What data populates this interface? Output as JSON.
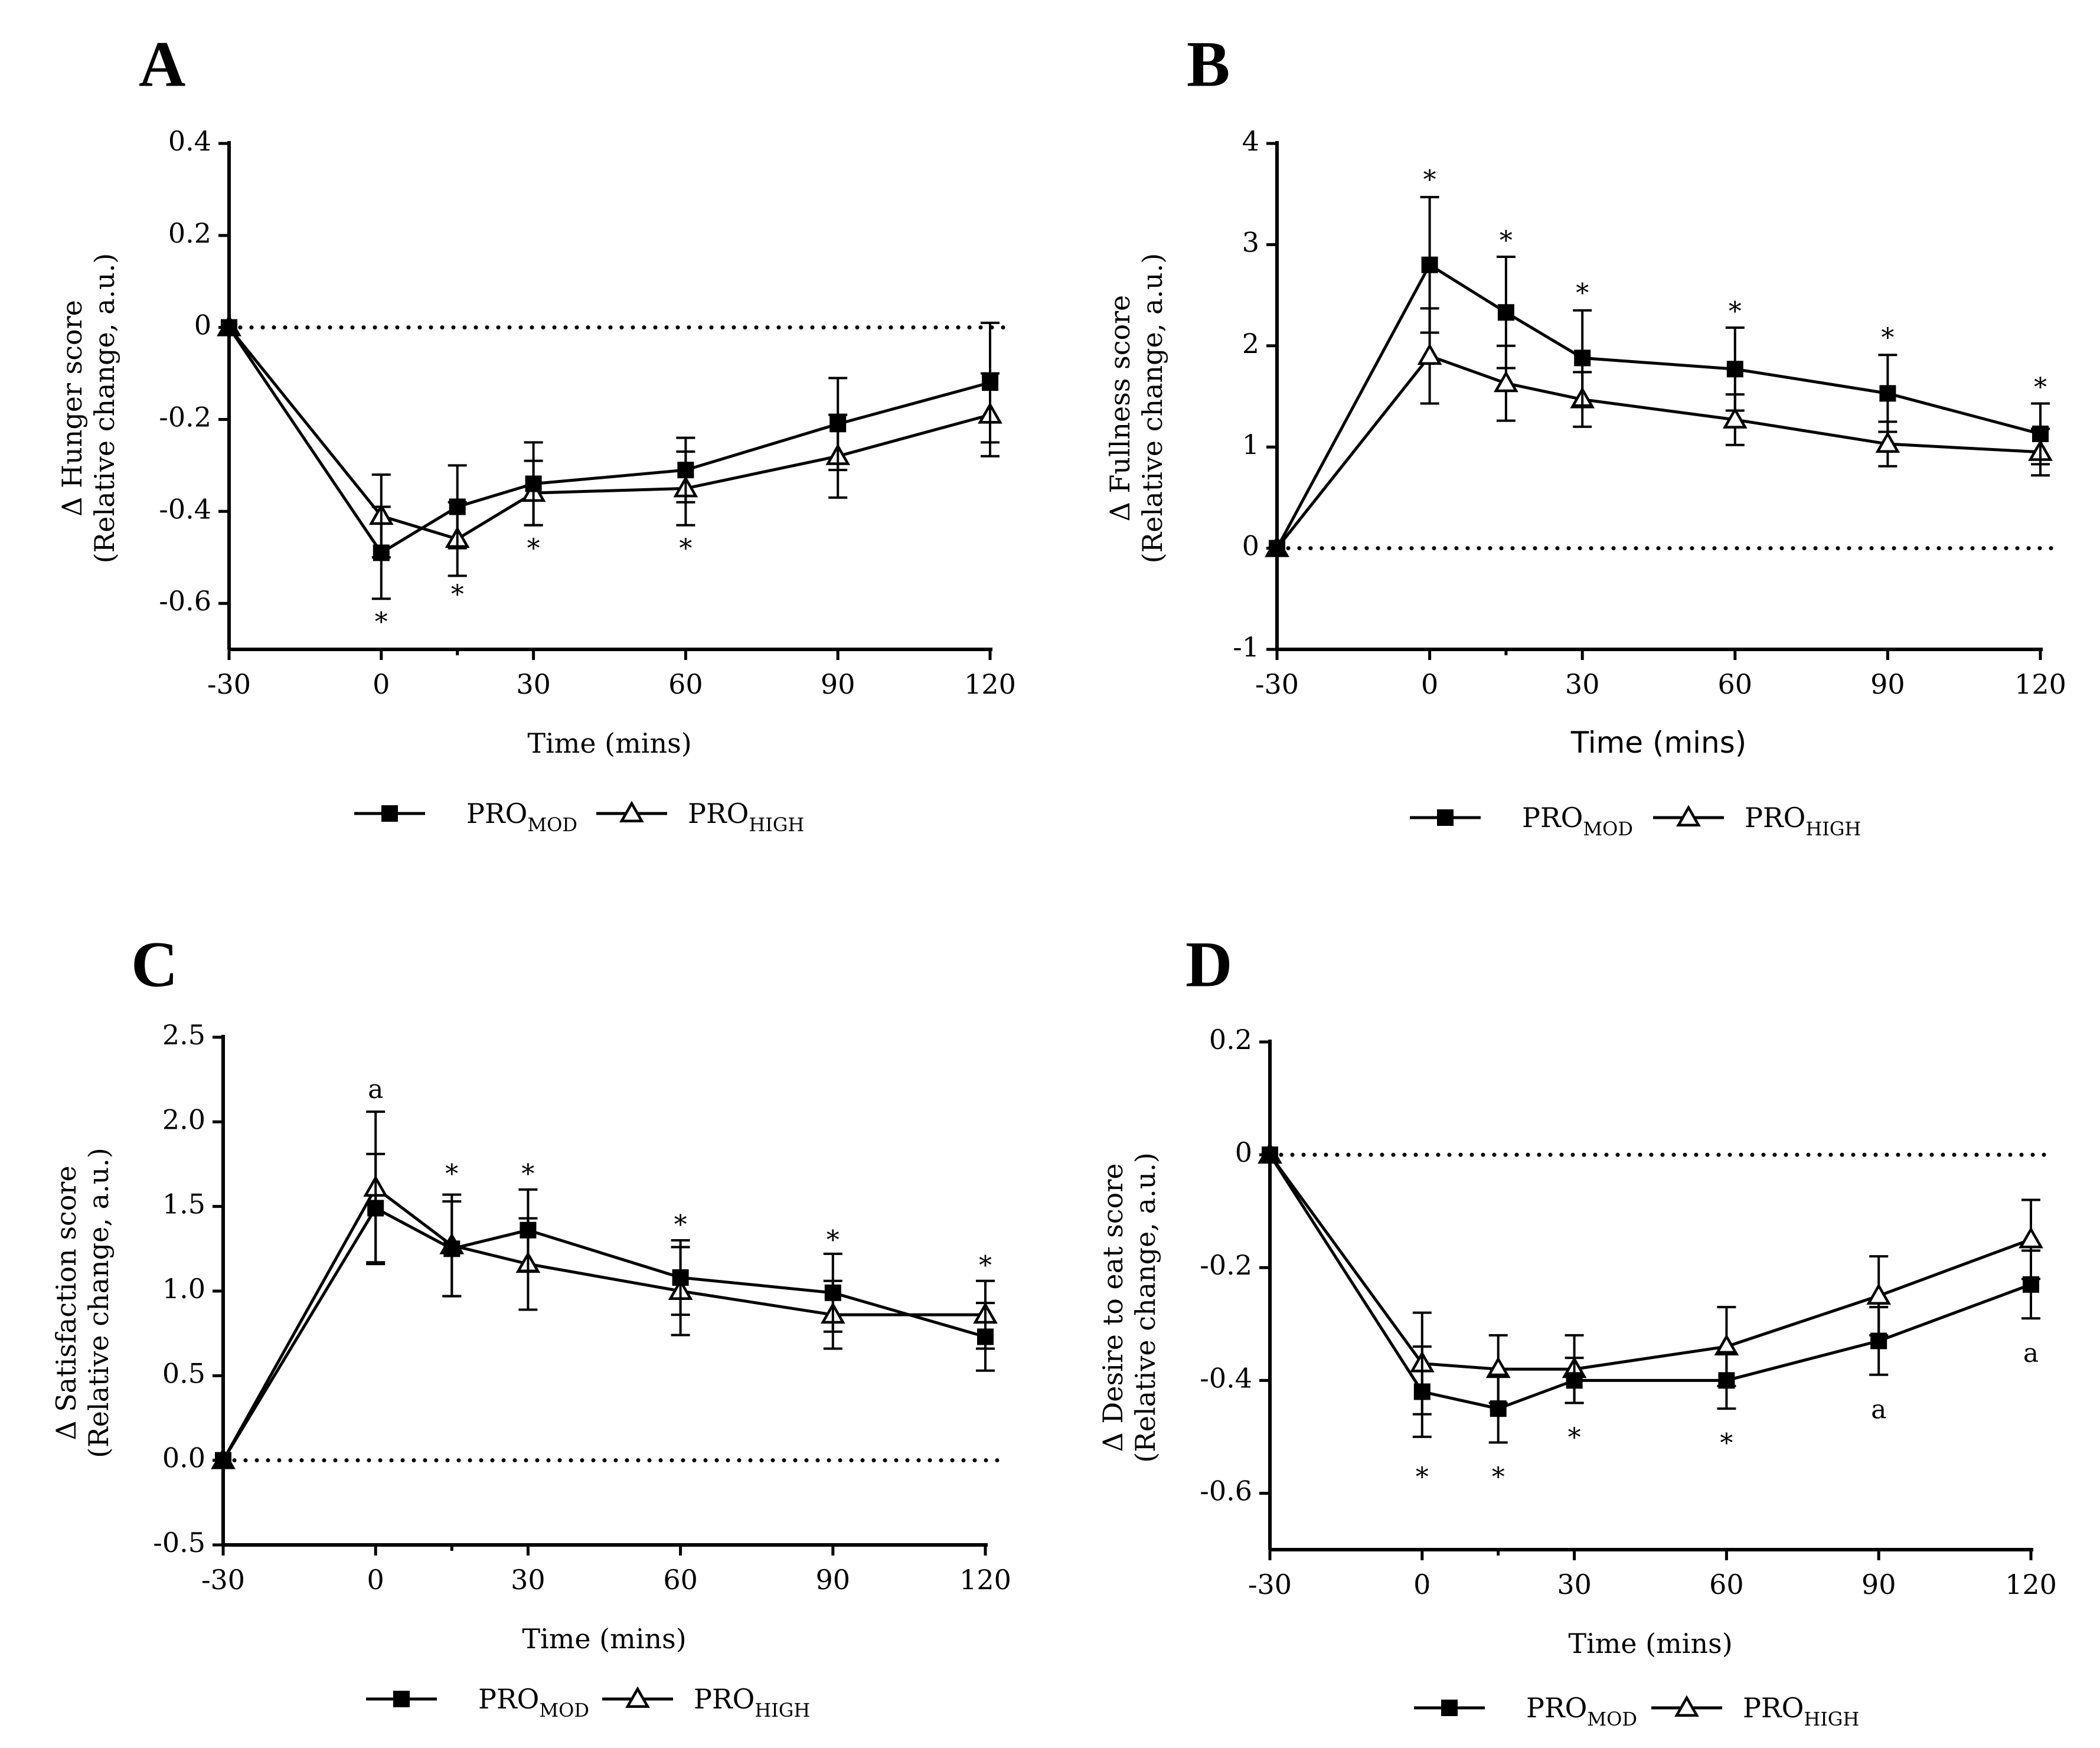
{
  "legend": {
    "series_mod_base": "PRO",
    "series_mod_sub": "MOD",
    "series_high_base": "PRO",
    "series_high_sub": "HIGH"
  },
  "chart_data": [
    {
      "panel": "A",
      "type": "line",
      "xlabel": "Time (mins)",
      "ylabel_main": "Δ Hunger score",
      "ylabel_sub": "(Relative change, a.u.)",
      "x": [
        -30,
        0,
        15,
        30,
        60,
        90,
        120
      ],
      "xticks": [
        -30,
        0,
        30,
        60,
        90,
        120
      ],
      "xtick_labels": [
        "-30",
        "0",
        "30",
        "60",
        "90",
        "120"
      ],
      "yticks": [
        -0.6,
        -0.4,
        -0.2,
        0,
        0.2,
        0.4
      ],
      "ytick_labels": [
        "-0.6",
        "-0.4",
        "-0.2",
        "0",
        "0.2",
        "0.4"
      ],
      "ylim": [
        -0.7,
        0.4
      ],
      "series": [
        {
          "name": "PRO_MOD",
          "marker": "square-filled",
          "values": [
            0,
            -0.49,
            -0.39,
            -0.34,
            -0.31,
            -0.21,
            -0.12
          ],
          "err": [
            0,
            0.1,
            0.09,
            0.09,
            0.07,
            0.1,
            0.13
          ]
        },
        {
          "name": "PRO_HIGH",
          "marker": "triangle-open",
          "values": [
            0,
            -0.41,
            -0.46,
            -0.36,
            -0.35,
            -0.28,
            -0.19
          ],
          "err": [
            0,
            0.09,
            0.08,
            0.07,
            0.08,
            0.09,
            0.09
          ]
        }
      ],
      "annotations": [
        {
          "text": "*",
          "x": 0,
          "y": -0.645
        },
        {
          "text": "*",
          "x": 15,
          "y": -0.585
        },
        {
          "text": "*",
          "x": 30,
          "y": -0.485
        },
        {
          "text": "*",
          "x": 60,
          "y": -0.485
        }
      ]
    },
    {
      "panel": "B",
      "type": "line",
      "xlabel": "Time (mins)",
      "ylabel_main": "Δ Fullness score",
      "ylabel_sub": "(Relative change, a.u.)",
      "x": [
        -30,
        0,
        15,
        30,
        60,
        90,
        120
      ],
      "xticks": [
        -30,
        0,
        30,
        60,
        90,
        120
      ],
      "xtick_labels": [
        "-30",
        "0",
        "30",
        "60",
        "90",
        "120"
      ],
      "yticks": [
        -1,
        0,
        1,
        2,
        3,
        4
      ],
      "ytick_labels": [
        "-1",
        "0",
        "1",
        "2",
        "3",
        "4"
      ],
      "ylim": [
        -1,
        4
      ],
      "series": [
        {
          "name": "PRO_MOD",
          "marker": "square-filled",
          "values": [
            0,
            2.8,
            2.33,
            1.88,
            1.77,
            1.53,
            1.13
          ],
          "err": [
            0,
            0.67,
            0.55,
            0.47,
            0.41,
            0.38,
            0.3
          ]
        },
        {
          "name": "PRO_HIGH",
          "marker": "triangle-open",
          "values": [
            0,
            1.9,
            1.63,
            1.47,
            1.27,
            1.03,
            0.95
          ],
          "err": [
            0,
            0.47,
            0.37,
            0.27,
            0.25,
            0.22,
            0.23
          ]
        }
      ],
      "annotations": [
        {
          "text": "*",
          "x": 0,
          "y": 3.62
        },
        {
          "text": "*",
          "x": 15,
          "y": 3.02
        },
        {
          "text": "*",
          "x": 30,
          "y": 2.5
        },
        {
          "text": "*",
          "x": 60,
          "y": 2.32
        },
        {
          "text": "*",
          "x": 90,
          "y": 2.06
        },
        {
          "text": "*",
          "x": 120,
          "y": 1.57
        }
      ]
    },
    {
      "panel": "C",
      "type": "line",
      "xlabel": "Time (mins)",
      "ylabel_main": "Δ Satisfaction score",
      "ylabel_sub": "(Relative change, a.u.)",
      "x": [
        -30,
        0,
        15,
        30,
        60,
        90,
        120
      ],
      "xticks": [
        -30,
        0,
        30,
        60,
        90,
        120
      ],
      "xtick_labels": [
        "-30",
        "0",
        "30",
        "60",
        "90",
        "120"
      ],
      "yticks": [
        -0.5,
        0.0,
        0.5,
        1.0,
        1.5,
        2.0,
        2.5
      ],
      "ytick_labels": [
        "-0.5",
        "0.0",
        "0.5",
        "1.0",
        "1.5",
        "2.0",
        "2.5"
      ],
      "ylim": [
        -0.5,
        2.5
      ],
      "series": [
        {
          "name": "PRO_MOD",
          "marker": "square-filled",
          "values": [
            0,
            1.49,
            1.25,
            1.36,
            1.08,
            0.99,
            0.73
          ],
          "err": [
            0,
            0.32,
            0.28,
            0.24,
            0.22,
            0.23,
            0.2
          ]
        },
        {
          "name": "PRO_HIGH",
          "marker": "triangle-open",
          "values": [
            0,
            1.61,
            1.27,
            1.16,
            1.0,
            0.86,
            0.86
          ],
          "err": [
            0,
            0.45,
            0.3,
            0.27,
            0.26,
            0.2,
            0.2
          ]
        }
      ],
      "annotations": [
        {
          "text": "a",
          "x": 0,
          "y": 2.18
        },
        {
          "text": "*",
          "x": 15,
          "y": 1.68
        },
        {
          "text": "*",
          "x": 30,
          "y": 1.68
        },
        {
          "text": "*",
          "x": 60,
          "y": 1.38
        },
        {
          "text": "*",
          "x": 90,
          "y": 1.29
        },
        {
          "text": "*",
          "x": 120,
          "y": 1.14
        }
      ]
    },
    {
      "panel": "D",
      "type": "line",
      "xlabel": "Time (mins)",
      "ylabel_main": "Δ Desire to eat score",
      "ylabel_sub": "(Relative change, a.u.)",
      "x": [
        -30,
        0,
        15,
        30,
        60,
        90,
        120
      ],
      "xticks": [
        -30,
        0,
        30,
        60,
        90,
        120
      ],
      "xtick_labels": [
        "-30",
        "0",
        "30",
        "60",
        "90",
        "120"
      ],
      "yticks": [
        -0.6,
        -0.4,
        -0.2,
        0,
        0.2
      ],
      "ytick_labels": [
        "-0.6",
        "-0.4",
        "-0.2",
        "0",
        "0.2"
      ],
      "ylim": [
        -0.7,
        0.2
      ],
      "series": [
        {
          "name": "PRO_MOD",
          "marker": "square-filled",
          "values": [
            0,
            -0.42,
            -0.45,
            -0.4,
            -0.4,
            -0.33,
            -0.23
          ],
          "err": [
            0,
            0.08,
            0.06,
            0.04,
            0.05,
            0.06,
            0.06
          ]
        },
        {
          "name": "PRO_HIGH",
          "marker": "triangle-open",
          "values": [
            0,
            -0.37,
            -0.38,
            -0.38,
            -0.34,
            -0.25,
            -0.15
          ],
          "err": [
            0,
            0.09,
            0.06,
            0.06,
            0.07,
            0.07,
            0.07
          ]
        }
      ],
      "annotations": [
        {
          "text": "*",
          "x": 0,
          "y": -0.575
        },
        {
          "text": "*",
          "x": 15,
          "y": -0.575
        },
        {
          "text": "*",
          "x": 30,
          "y": -0.505
        },
        {
          "text": "*",
          "x": 60,
          "y": -0.515
        },
        {
          "text": "a",
          "x": 90,
          "y": -0.455
        },
        {
          "text": "a",
          "x": 120,
          "y": -0.355
        }
      ]
    }
  ]
}
